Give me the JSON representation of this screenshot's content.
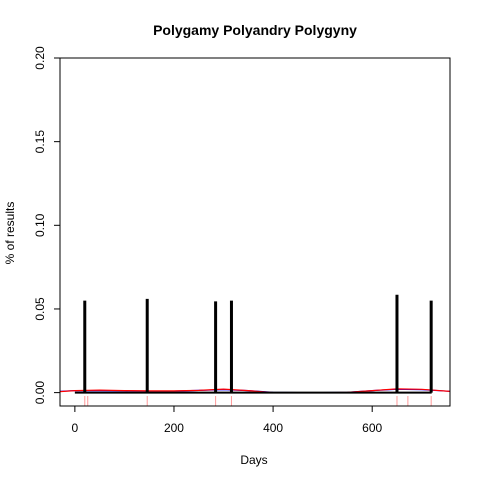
{
  "chart_data": {
    "type": "bar",
    "title": "Polygamy Polyandry Polygyny",
    "xlabel": "Days",
    "ylabel": "% of results",
    "xlim": [
      -30,
      757
    ],
    "ylim": [
      -0.008,
      0.2
    ],
    "xticks": [
      0,
      200,
      400,
      600
    ],
    "yticks": [
      0.0,
      0.05,
      0.1,
      0.15,
      0.2
    ],
    "ytick_labels": [
      "0.00",
      "0.05",
      "0.10",
      "0.15",
      "0.20"
    ],
    "grid": false,
    "series": [
      {
        "type": "bar",
        "color": "#000000",
        "points": [
          {
            "x": 20,
            "y": 0.055
          },
          {
            "x": 146,
            "y": 0.056
          },
          {
            "x": 284,
            "y": 0.0545
          },
          {
            "x": 316,
            "y": 0.055
          },
          {
            "x": 650,
            "y": 0.0585
          },
          {
            "x": 719,
            "y": 0.055
          }
        ]
      },
      {
        "type": "rug",
        "color": "#ff9999",
        "x": [
          20,
          26,
          146,
          284,
          316,
          650,
          672,
          719
        ]
      },
      {
        "type": "smooth",
        "color": "#0000ff",
        "points": [
          [
            -30,
            0.0008
          ],
          [
            0,
            0.0012
          ],
          [
            50,
            0.0012
          ],
          [
            100,
            0.0011
          ],
          [
            150,
            0.0009
          ],
          [
            200,
            0.0009
          ],
          [
            250,
            0.0013
          ],
          [
            300,
            0.0018
          ],
          [
            350,
            0.0012
          ],
          [
            400,
            0.0001
          ],
          [
            450,
            0.0
          ],
          [
            500,
            0.0
          ],
          [
            550,
            0.0002
          ],
          [
            600,
            0.0012
          ],
          [
            650,
            0.002
          ],
          [
            700,
            0.0018
          ],
          [
            757,
            0.0008
          ]
        ]
      },
      {
        "type": "smooth",
        "color": "#ff0000",
        "points": [
          [
            -30,
            0.0006
          ],
          [
            0,
            0.0012
          ],
          [
            50,
            0.0015
          ],
          [
            100,
            0.0012
          ],
          [
            150,
            0.001
          ],
          [
            200,
            0.001
          ],
          [
            250,
            0.0013
          ],
          [
            300,
            0.0021
          ],
          [
            350,
            0.0012
          ],
          [
            400,
            0.0
          ],
          [
            450,
            -0.0001
          ],
          [
            500,
            -0.0001
          ],
          [
            550,
            0.0002
          ],
          [
            600,
            0.0012
          ],
          [
            650,
            0.0022
          ],
          [
            700,
            0.002
          ],
          [
            757,
            0.0007
          ]
        ]
      },
      {
        "type": "line",
        "color": "#000000",
        "points": [
          [
            0,
            0.0
          ],
          [
            720,
            0.0
          ]
        ]
      }
    ]
  }
}
